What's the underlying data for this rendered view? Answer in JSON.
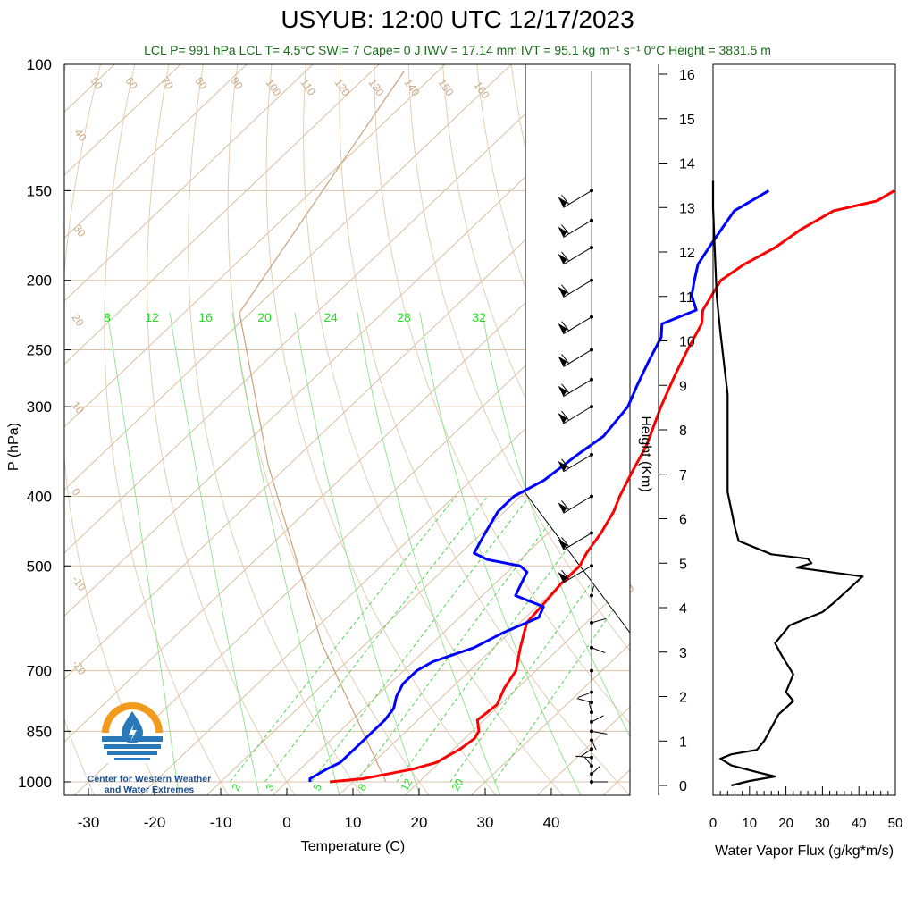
{
  "header": {
    "title": "USYUB: 12:00 UTC 12/17/2023",
    "subtitle": "LCL P= 991 hPa  LCL T= 4.5°C  SWI= 7  Cape= 0 J  IWV = 17.14 mm  IVT = 95.1 kg m⁻¹ s⁻¹  0°C Height = 3831.5 m"
  },
  "logo": {
    "line1": "Center for Western Weather",
    "line2": "and Water Extremes"
  },
  "chart_data": [
    {
      "type": "line",
      "name": "skew-t",
      "xlabel": "Temperature (C)",
      "ylabel": "P (hPa)",
      "xticks": [
        -30,
        -20,
        -10,
        0,
        10,
        20,
        30,
        40
      ],
      "pticks": [
        100,
        150,
        200,
        250,
        300,
        400,
        500,
        700,
        850,
        1000
      ],
      "ylim": [
        1000,
        100
      ],
      "xlim": [
        -35,
        50
      ],
      "y_scale": "log",
      "isotherm_labels": [
        160,
        150,
        140,
        130,
        120,
        110,
        100,
        90,
        80,
        70,
        60,
        50,
        40,
        30,
        20,
        10,
        0,
        -10,
        -20
      ],
      "dry_adiabat_labels": [
        30,
        20,
        10,
        0,
        -10,
        -20,
        -30
      ],
      "mixing_ratio_labels": [
        8,
        12,
        16,
        20,
        24,
        28,
        32
      ],
      "mixing_ratio_bottom_labels": [
        2,
        3,
        5,
        8,
        12,
        20
      ],
      "series": [
        {
          "name": "",
          "color": "#ff0000",
          "points": [
            [
              1000,
              6.5
            ],
            [
              990,
              11
            ],
            [
              975,
              14
            ],
            [
              960,
              17
            ],
            [
              940,
              19.5
            ],
            [
              900,
              21
            ],
            [
              870,
              21.5
            ],
            [
              850,
              21
            ],
            [
              820,
              19
            ],
            [
              780,
              19.5
            ],
            [
              740,
              18
            ],
            [
              700,
              17
            ],
            [
              650,
              14
            ],
            [
              600,
              11
            ],
            [
              560,
              10.5
            ],
            [
              530,
              10
            ],
            [
              500,
              10
            ],
            [
              480,
              9
            ],
            [
              450,
              8
            ],
            [
              420,
              6.5
            ],
            [
              400,
              5
            ],
            [
              370,
              3
            ],
            [
              340,
              1
            ],
            [
              300,
              -3
            ],
            [
              270,
              -6
            ],
            [
              250,
              -8
            ],
            [
              230,
              -10
            ],
            [
              220,
              -12
            ],
            [
              200,
              -14
            ],
            [
              190,
              -13
            ],
            [
              180,
              -11
            ],
            [
              170,
              -10
            ],
            [
              160,
              -8
            ],
            [
              155,
              -3
            ],
            [
              150,
              -2
            ]
          ]
        },
        {
          "name": "",
          "color": "#0000ff",
          "points": [
            [
              1000,
              3.5
            ],
            [
              990,
              3
            ],
            [
              960,
              4
            ],
            [
              940,
              5
            ],
            [
              900,
              5
            ],
            [
              870,
              5
            ],
            [
              850,
              5
            ],
            [
              820,
              5
            ],
            [
              790,
              4.5
            ],
            [
              760,
              3
            ],
            [
              730,
              2
            ],
            [
              700,
              2
            ],
            [
              680,
              3
            ],
            [
              650,
              7
            ],
            [
              620,
              9
            ],
            [
              590,
              12
            ],
            [
              570,
              11
            ],
            [
              550,
              5
            ],
            [
              530,
              4
            ],
            [
              510,
              3
            ],
            [
              500,
              1
            ],
            [
              490,
              -5
            ],
            [
              480,
              -8
            ],
            [
              460,
              -9
            ],
            [
              440,
              -10
            ],
            [
              420,
              -11
            ],
            [
              400,
              -11
            ],
            [
              380,
              -9
            ],
            [
              350,
              -8
            ],
            [
              330,
              -7
            ],
            [
              300,
              -8
            ],
            [
              280,
              -10
            ],
            [
              260,
              -12
            ],
            [
              240,
              -14
            ],
            [
              230,
              -16
            ],
            [
              220,
              -13
            ],
            [
              210,
              -16
            ],
            [
              200,
              -18
            ],
            [
              190,
              -20
            ],
            [
              180,
              -21
            ],
            [
              170,
              -22
            ],
            [
              160,
              -23
            ],
            [
              155,
              -22
            ],
            [
              150,
              -21
            ]
          ]
        }
      ],
      "wind_pressures": [
        1000,
        975,
        950,
        925,
        900,
        875,
        850,
        825,
        800,
        775,
        750,
        700,
        650,
        600,
        550,
        500,
        450,
        400,
        350,
        300,
        275,
        250,
        225,
        200,
        180,
        165,
        150
      ]
    },
    {
      "type": "line",
      "name": "water-vapor-flux",
      "xlabel": "Water Vapor Flux (g/kg*m/s)",
      "ylabel": "Height (Km)",
      "xticks": [
        0,
        10,
        20,
        30,
        40,
        50
      ],
      "yticks": [
        0,
        1,
        2,
        3,
        4,
        5,
        6,
        7,
        8,
        9,
        10,
        11,
        12,
        13,
        14,
        15,
        16
      ],
      "xlim": [
        0,
        50
      ],
      "ylim": [
        0,
        16
      ],
      "series": [
        {
          "name": "",
          "color": "#000000",
          "points": [
            [
              5,
              0
            ],
            [
              10,
              0.1
            ],
            [
              17,
              0.2
            ],
            [
              12,
              0.3
            ],
            [
              5,
              0.45
            ],
            [
              2,
              0.6
            ],
            [
              5,
              0.7
            ],
            [
              12,
              0.8
            ],
            [
              14,
              1.0
            ],
            [
              16,
              1.3
            ],
            [
              18,
              1.6
            ],
            [
              22,
              1.9
            ],
            [
              20,
              2.1
            ],
            [
              22,
              2.5
            ],
            [
              19,
              2.9
            ],
            [
              17,
              3.2
            ],
            [
              21,
              3.6
            ],
            [
              30,
              3.9
            ],
            [
              33,
              4.1
            ],
            [
              37,
              4.4
            ],
            [
              41,
              4.7
            ],
            [
              32,
              4.8
            ],
            [
              23,
              4.9
            ],
            [
              27,
              5.0
            ],
            [
              26,
              5.1
            ],
            [
              16,
              5.2
            ],
            [
              13,
              5.3
            ],
            [
              7,
              5.5
            ],
            [
              6,
              5.8
            ],
            [
              5,
              6.2
            ],
            [
              4,
              6.6
            ],
            [
              4,
              7.0
            ],
            [
              4,
              7.6
            ],
            [
              4,
              8.2
            ],
            [
              4,
              8.8
            ],
            [
              3,
              9.5
            ],
            [
              2,
              10.2
            ],
            [
              1,
              11.0
            ],
            [
              0.5,
              12.0
            ],
            [
              0,
              13.0
            ],
            [
              0,
              13.6
            ]
          ]
        }
      ]
    }
  ]
}
